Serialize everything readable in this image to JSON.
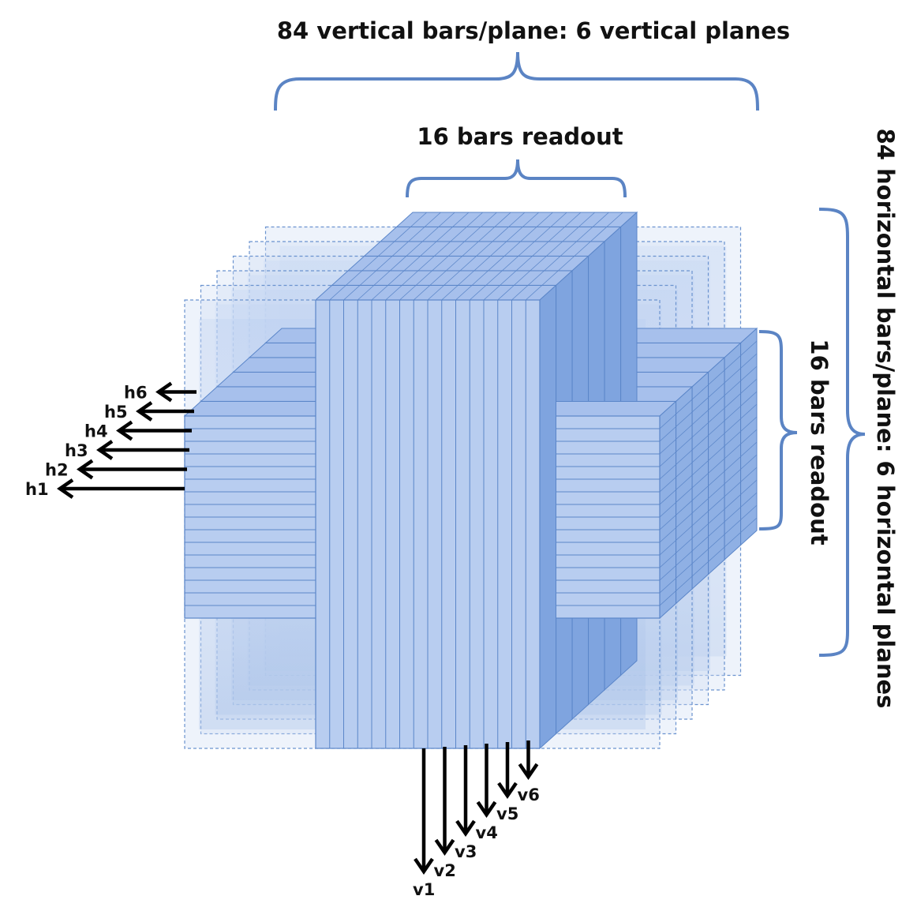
{
  "labels": {
    "top_outer": "84 vertical bars/plane: 6 vertical planes",
    "top_inner": "16 bars readout",
    "right_outer": "84 horizontal bars/plane: 6 horizontal planes",
    "right_inner": "16 bars readout"
  },
  "horizontal_outputs": [
    "h1",
    "h2",
    "h3",
    "h4",
    "h5",
    "h6"
  ],
  "vertical_outputs": [
    "v1",
    "v2",
    "v3",
    "v4",
    "v5",
    "v6"
  ],
  "colors": {
    "bar_fill": "#b8cdf0",
    "bar_stroke": "#5b86c9",
    "frame_fill": "#cfdcf4",
    "frame_stroke": "#6b93cf",
    "inner_shade": "#8fb0e4",
    "brace": "#5b84c4",
    "arrow": "#000000"
  }
}
